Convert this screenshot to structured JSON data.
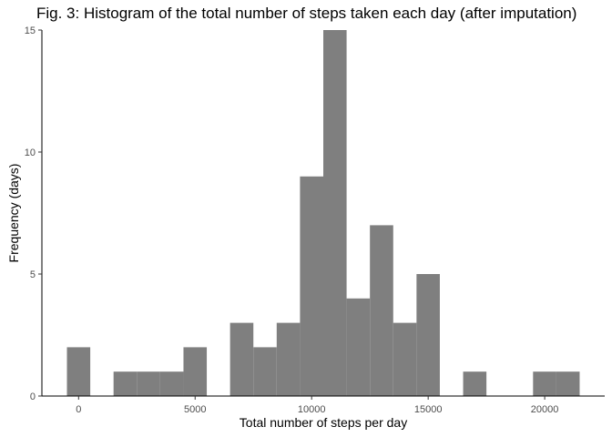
{
  "chart_data": {
    "type": "bar",
    "title": "Fig. 3: Histogram of the total number of steps taken each day (after imputation)",
    "xlabel": "Total number of steps per day",
    "ylabel": "Frequency (days)",
    "bin_width": 1000,
    "bins": [
      {
        "x": 0,
        "count": 2
      },
      {
        "x": 1000,
        "count": 0
      },
      {
        "x": 2000,
        "count": 1
      },
      {
        "x": 3000,
        "count": 1
      },
      {
        "x": 4000,
        "count": 1
      },
      {
        "x": 5000,
        "count": 2
      },
      {
        "x": 6000,
        "count": 0
      },
      {
        "x": 7000,
        "count": 3
      },
      {
        "x": 8000,
        "count": 2
      },
      {
        "x": 9000,
        "count": 3
      },
      {
        "x": 10000,
        "count": 9
      },
      {
        "x": 11000,
        "count": 15
      },
      {
        "x": 12000,
        "count": 4
      },
      {
        "x": 13000,
        "count": 7
      },
      {
        "x": 14000,
        "count": 3
      },
      {
        "x": 15000,
        "count": 5
      },
      {
        "x": 16000,
        "count": 0
      },
      {
        "x": 17000,
        "count": 1
      },
      {
        "x": 18000,
        "count": 0
      },
      {
        "x": 19000,
        "count": 0
      },
      {
        "x": 20000,
        "count": 1
      },
      {
        "x": 21000,
        "count": 1
      }
    ],
    "xlim": [
      -1575,
      22575
    ],
    "ylim": [
      0,
      15
    ],
    "xticks": [
      0,
      5000,
      10000,
      15000,
      20000
    ],
    "xtick_labels": [
      "0",
      "5000",
      "10000",
      "15000",
      "20000"
    ],
    "yticks": [
      0,
      5,
      10,
      15
    ],
    "ytick_labels": [
      "0",
      "5",
      "10",
      "15"
    ],
    "bar_color": "#7f7f7f",
    "axis_color": "#000000",
    "grid": false,
    "legend": "none"
  }
}
